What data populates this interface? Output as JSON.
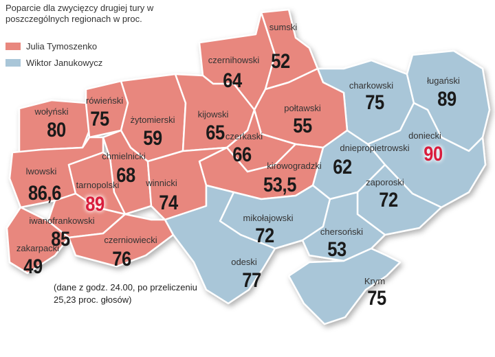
{
  "title": "Poparcie dla zwycięzcy drugiej tury w poszczególnych regionach w proc.",
  "legend": [
    {
      "label": "Julia Tymoszenko",
      "color": "#e8877e"
    },
    {
      "label": "Wiktor Janukowycz",
      "color": "#a9c6d8"
    }
  ],
  "note_line1": "(dane z godz. 24.00, po przeliczeniu",
  "note_line2": "25,23 proc. głosów)",
  "highlight_color": "#d91c3c",
  "regions": [
    {
      "name": "czernihowski",
      "value": "64",
      "winner": "Julia Tymoszenko"
    },
    {
      "name": "sumski",
      "value": "52",
      "winner": "Julia Tymoszenko"
    },
    {
      "name": "charkowski",
      "value": "75",
      "winner": "Wiktor Janukowycz"
    },
    {
      "name": "ługański",
      "value": "89",
      "winner": "Wiktor Janukowycz"
    },
    {
      "name": "wołyński",
      "value": "80",
      "winner": "Julia Tymoszenko"
    },
    {
      "name": "rówieński",
      "value": "75",
      "winner": "Julia Tymoszenko"
    },
    {
      "name": "żytomierski",
      "value": "59",
      "winner": "Julia Tymoszenko"
    },
    {
      "name": "kijowski",
      "value": "65",
      "winner": "Julia Tymoszenko"
    },
    {
      "name": "połtawski",
      "value": "55",
      "winner": "Julia Tymoszenko"
    },
    {
      "name": "doniecki",
      "value": "90",
      "winner": "Wiktor Janukowycz",
      "highlight": true
    },
    {
      "name": "czerkaski",
      "value": "66",
      "winner": "Julia Tymoszenko"
    },
    {
      "name": "dniepropietrowski",
      "value": "62",
      "winner": "Wiktor Janukowycz"
    },
    {
      "name": "chmielnicki",
      "value": "68",
      "winner": "Julia Tymoszenko"
    },
    {
      "name": "kirowogradzki",
      "value": "53,5",
      "winner": "Julia Tymoszenko"
    },
    {
      "name": "lwowski",
      "value": "86,6",
      "winner": "Julia Tymoszenko"
    },
    {
      "name": "tarnopolski",
      "value": "89",
      "winner": "Julia Tymoszenko",
      "highlight": true
    },
    {
      "name": "winnicki",
      "value": "74",
      "winner": "Julia Tymoszenko"
    },
    {
      "name": "zaporoski",
      "value": "72",
      "winner": "Wiktor Janukowycz"
    },
    {
      "name": "iwanofrankowski",
      "value": "85",
      "winner": "Julia Tymoszenko"
    },
    {
      "name": "mikołajowski",
      "value": "72",
      "winner": "Wiktor Janukowycz"
    },
    {
      "name": "chersoński",
      "value": "53",
      "winner": "Wiktor Janukowycz"
    },
    {
      "name": "czerniowiecki",
      "value": "76",
      "winner": "Julia Tymoszenko"
    },
    {
      "name": "zakarpacki",
      "value": "49",
      "winner": "Julia Tymoszenko"
    },
    {
      "name": "odeski",
      "value": "77",
      "winner": "Wiktor Janukowycz"
    },
    {
      "name": "Krym",
      "value": "75",
      "winner": "Wiktor Janukowycz"
    }
  ]
}
